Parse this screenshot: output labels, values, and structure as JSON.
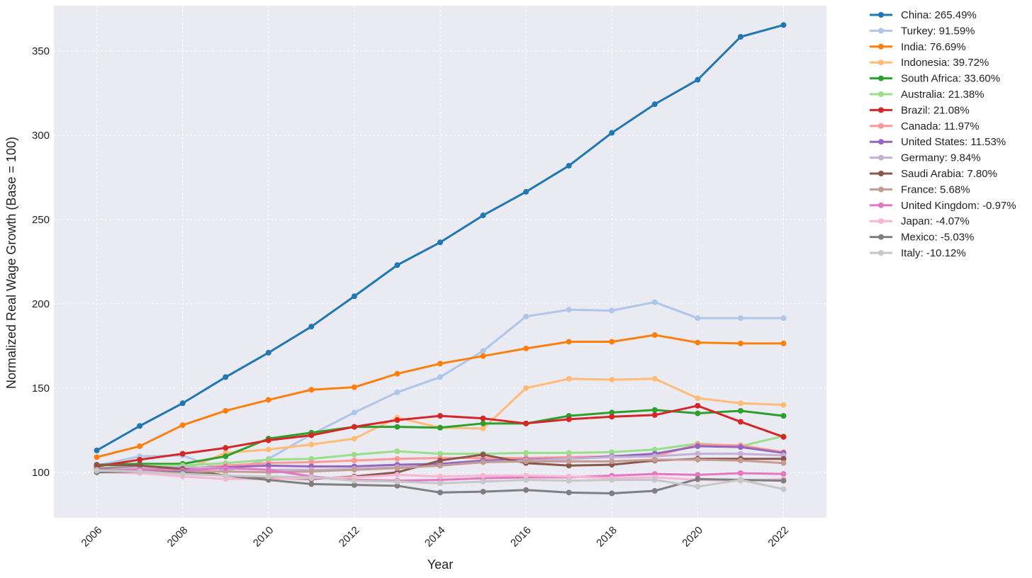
{
  "chart_data": {
    "type": "line",
    "title": "",
    "xlabel": "Year",
    "ylabel": "Normalized Real Wage Growth (Base = 100)",
    "x": [
      2006,
      2007,
      2008,
      2009,
      2010,
      2011,
      2012,
      2013,
      2014,
      2015,
      2016,
      2017,
      2018,
      2019,
      2020,
      2021,
      2022
    ],
    "x_ticks": [
      "2006",
      "2008",
      "2010",
      "2012",
      "2014",
      "2016",
      "2018",
      "2020",
      "2022"
    ],
    "y_ticks": [
      "100",
      "150",
      "200",
      "250",
      "300",
      "350"
    ],
    "xlim": [
      2005.0,
      2023.0
    ],
    "ylim": [
      73,
      377
    ],
    "grid": true,
    "legend_position": "outside-right",
    "series": [
      {
        "name": "China: 265.49%",
        "color": "#1f77b4",
        "values": [
          113,
          127.5,
          141,
          156.5,
          171,
          186.5,
          204.5,
          223,
          236.5,
          252.5,
          266.5,
          282,
          301.5,
          318.5,
          333,
          358.5,
          365.5
        ]
      },
      {
        "name": "Turkey: 91.59%",
        "color": "#aec7e8",
        "values": [
          104,
          109.5,
          110,
          100.5,
          108,
          122.5,
          135.5,
          147.5,
          156.5,
          172,
          192.5,
          196.5,
          196,
          201,
          191.5,
          191.5,
          191.5
        ]
      },
      {
        "name": "India: 76.69%",
        "color": "#ff7f0e",
        "values": [
          109,
          115.5,
          128,
          136.5,
          143,
          149,
          150.5,
          158.5,
          164.5,
          169,
          173.5,
          177.5,
          177.5,
          181.5,
          177,
          176.5,
          176.5
        ]
      },
      {
        "name": "Indonesia: 39.72%",
        "color": "#ffbb78",
        "values": [
          100,
          102,
          101,
          111.5,
          113.5,
          116.5,
          120,
          132.5,
          126.5,
          126,
          150,
          155.5,
          155,
          155.5,
          144,
          141,
          140
        ]
      },
      {
        "name": "South Africa: 33.60%",
        "color": "#2ca02c",
        "values": [
          104.5,
          105,
          105,
          109.5,
          120,
          123.5,
          127,
          127,
          126.5,
          129,
          129,
          133.5,
          135.5,
          137,
          135,
          136.5,
          133.5
        ]
      },
      {
        "name": "Australia: 21.38%",
        "color": "#98df8a",
        "values": [
          102.5,
          104,
          104,
          105.5,
          107.5,
          108,
          110.5,
          112.5,
          111,
          111,
          111.5,
          111.5,
          112,
          113.5,
          117,
          115.5,
          121.5
        ]
      },
      {
        "name": "Brazil: 21.08%",
        "color": "#d62728",
        "values": [
          103.5,
          107.5,
          111,
          114.5,
          119,
          122,
          127,
          131,
          133.5,
          132,
          129,
          131.5,
          133,
          134,
          139.5,
          130,
          121
        ]
      },
      {
        "name": "Canada: 11.97%",
        "color": "#ff9896",
        "values": [
          101.5,
          102.5,
          102,
          104,
          105.5,
          106,
          107,
          108,
          108.5,
          108.5,
          108.5,
          109,
          109.5,
          109.5,
          116.5,
          116,
          112
        ]
      },
      {
        "name": "United States: 11.53%",
        "color": "#9467bd",
        "values": [
          102,
          103,
          102.5,
          103,
          104,
          103.5,
          103.5,
          104.5,
          105,
          107,
          107.5,
          108,
          109.5,
          111,
          115.5,
          115,
          111.5
        ]
      },
      {
        "name": "Germany: 9.84%",
        "color": "#c5b0d5",
        "values": [
          101,
          103,
          103,
          102.5,
          101.5,
          101.5,
          102,
          103,
          104,
          106,
          107,
          108,
          109,
          109.5,
          111,
          111,
          110
        ]
      },
      {
        "name": "Saudi Arabia: 7.80%",
        "color": "#8c564b",
        "values": [
          104.5,
          104,
          102,
          98,
          96.5,
          96,
          97.5,
          100,
          107,
          110.5,
          105.5,
          104,
          104.5,
          107,
          108,
          108,
          108
        ]
      },
      {
        "name": "France: 5.68%",
        "color": "#c49c94",
        "values": [
          101.5,
          101.5,
          100.5,
          100.5,
          100,
          100.5,
          101.5,
          102.5,
          104,
          106,
          106.5,
          106.5,
          106.5,
          107.5,
          107.5,
          107,
          105.5
        ]
      },
      {
        "name": "United Kingdom: -0.97%",
        "color": "#e377c2",
        "values": [
          100.5,
          101.5,
          101,
          102.5,
          101.5,
          97.5,
          95.5,
          95,
          95.5,
          96.5,
          97,
          97,
          98,
          99,
          98.5,
          99.5,
          99
        ]
      },
      {
        "name": "Japan: -4.07%",
        "color": "#f7b6d2",
        "values": [
          100,
          99.5,
          97.5,
          96,
          96,
          96.5,
          97,
          98.5,
          97.5,
          98,
          98,
          97.5,
          96.5,
          97,
          95.5,
          95,
          96
        ]
      },
      {
        "name": "Mexico: -5.03%",
        "color": "#7f7f7f",
        "values": [
          100,
          100.5,
          100,
          98,
          95.5,
          93,
          92.5,
          92,
          88,
          88.5,
          89.5,
          88,
          87.5,
          89,
          96,
          95.5,
          95
        ]
      },
      {
        "name": "Italy: -10.12%",
        "color": "#c7c7c7",
        "values": [
          101,
          100.5,
          99,
          98,
          97.5,
          97,
          95,
          94.5,
          93.5,
          94.5,
          95.5,
          95,
          95.5,
          95.5,
          91.5,
          95.5,
          90
        ]
      }
    ]
  }
}
